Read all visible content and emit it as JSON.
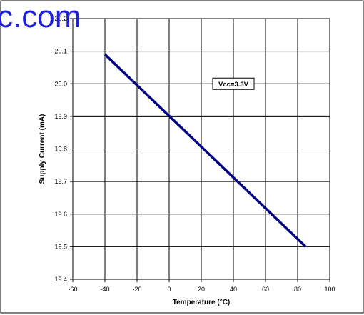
{
  "watermark": "c.com",
  "chart_data": {
    "type": "line",
    "title": "",
    "xlabel": "Temperature (°C)",
    "ylabel": "Supply Current (mA)",
    "xlim": [
      -60,
      100
    ],
    "ylim": [
      19.4,
      20.2
    ],
    "xticks": [
      -60,
      -40,
      -20,
      0,
      20,
      40,
      60,
      80,
      100
    ],
    "yticks": [
      19.4,
      19.5,
      19.6,
      19.7,
      19.8,
      19.9,
      20.0,
      20.1,
      20.2
    ],
    "xtick_labels": [
      "-60",
      "-40",
      "-20",
      "0",
      "20",
      "40",
      "60",
      "80",
      "100"
    ],
    "ytick_labels": [
      "19.4",
      "19.5",
      "19.6",
      "19.7",
      "19.8",
      "19.9",
      "20.0",
      "20.1",
      "20.2"
    ],
    "grid": true,
    "series": [
      {
        "name": "",
        "x": [
          -40,
          85
        ],
        "y": [
          20.09,
          19.5
        ],
        "color": "#000080"
      }
    ],
    "annotations": [
      {
        "text": "Vcc=3.3V",
        "x": 40,
        "y": 20.0
      }
    ],
    "highlight_line_y": 19.9
  }
}
